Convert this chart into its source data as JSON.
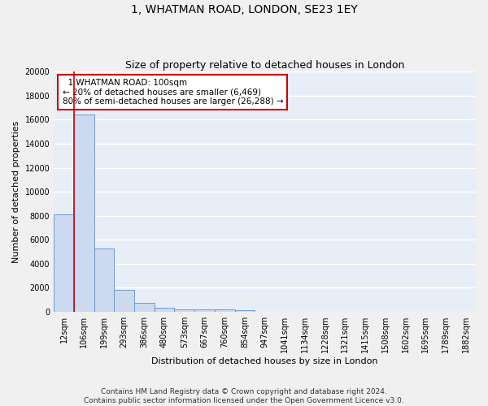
{
  "title": "1, WHATMAN ROAD, LONDON, SE23 1EY",
  "subtitle": "Size of property relative to detached houses in London",
  "xlabel": "Distribution of detached houses by size in London",
  "ylabel": "Number of detached properties",
  "bin_labels": [
    "12sqm",
    "106sqm",
    "199sqm",
    "293sqm",
    "386sqm",
    "480sqm",
    "573sqm",
    "667sqm",
    "760sqm",
    "854sqm",
    "947sqm",
    "1041sqm",
    "1134sqm",
    "1228sqm",
    "1321sqm",
    "1415sqm",
    "1508sqm",
    "1602sqm",
    "1695sqm",
    "1789sqm",
    "1882sqm"
  ],
  "bar_heights": [
    8100,
    16400,
    5300,
    1850,
    750,
    330,
    220,
    200,
    175,
    150,
    0,
    0,
    0,
    0,
    0,
    0,
    0,
    0,
    0,
    0,
    0
  ],
  "bar_color": "#ccd9f0",
  "bar_edge_color": "#6090c8",
  "property_line_color": "#cc0000",
  "annotation_text": "  1 WHATMAN ROAD: 100sqm\n← 20% of detached houses are smaller (6,469)\n80% of semi-detached houses are larger (26,288) →",
  "annotation_box_color": "#ffffff",
  "annotation_box_edge": "#cc0000",
  "ylim": [
    0,
    20000
  ],
  "yticks": [
    0,
    2000,
    4000,
    6000,
    8000,
    10000,
    12000,
    14000,
    16000,
    18000,
    20000
  ],
  "footer_text": "Contains HM Land Registry data © Crown copyright and database right 2024.\nContains public sector information licensed under the Open Government Licence v3.0.",
  "background_color": "#e8eef8",
  "grid_color": "#ffffff",
  "fig_background": "#f0f0f0",
  "title_fontsize": 10,
  "subtitle_fontsize": 9,
  "axis_label_fontsize": 8,
  "tick_fontsize": 7,
  "annotation_fontsize": 7.5,
  "footer_fontsize": 6.5
}
